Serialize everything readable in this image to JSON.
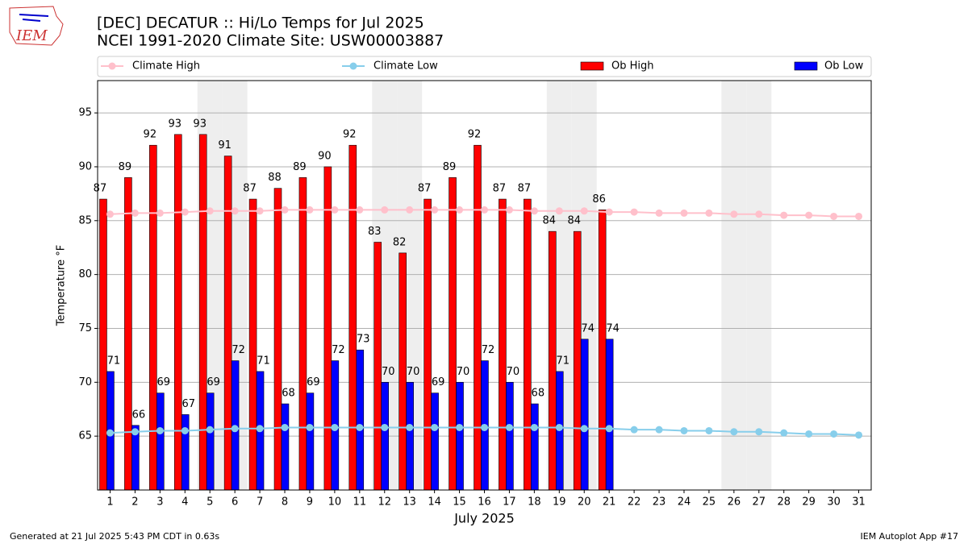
{
  "logo_text": "IEM",
  "footer_left": "Generated at 21 Jul 2025 5:43 PM CDT in 0.63s",
  "footer_right": "IEM Autoplot App #17",
  "chart_data": {
    "type": "bar_line",
    "title": "[DEC] DECATUR :: Hi/Lo Temps for Jul 2025",
    "subtitle": "NCEI 1991-2020 Climate Site: USW00003887",
    "x_label": "July 2025",
    "y_label": "Temperature °F",
    "categories": [
      "1",
      "2",
      "3",
      "4",
      "5",
      "6",
      "7",
      "8",
      "9",
      "10",
      "11",
      "12",
      "13",
      "14",
      "15",
      "16",
      "17",
      "18",
      "19",
      "20",
      "21",
      "22",
      "23",
      "24",
      "25",
      "26",
      "27",
      "28",
      "29",
      "30",
      "31"
    ],
    "shaded_categories": [
      "5",
      "6",
      "12",
      "13",
      "19",
      "20",
      "26",
      "27"
    ],
    "ylim": [
      60,
      98
    ],
    "yticks": [
      65,
      70,
      75,
      80,
      85,
      90,
      95
    ],
    "grid": true,
    "series": [
      {
        "name": "Climate High",
        "kind": "line",
        "color": "#ffc0cb",
        "values": [
          85.6,
          85.7,
          85.7,
          85.8,
          85.9,
          85.9,
          85.9,
          86,
          86,
          86,
          86,
          86,
          86,
          86,
          86,
          86,
          86,
          85.9,
          85.9,
          85.9,
          85.8,
          85.8,
          85.7,
          85.7,
          85.7,
          85.6,
          85.6,
          85.5,
          85.5,
          85.4,
          85.4
        ]
      },
      {
        "name": "Climate Low",
        "kind": "line",
        "color": "#87ceeb",
        "values": [
          65.3,
          65.4,
          65.5,
          65.5,
          65.6,
          65.7,
          65.7,
          65.8,
          65.8,
          65.8,
          65.8,
          65.8,
          65.8,
          65.8,
          65.8,
          65.8,
          65.8,
          65.8,
          65.8,
          65.7,
          65.7,
          65.6,
          65.6,
          65.5,
          65.5,
          65.4,
          65.4,
          65.3,
          65.2,
          65.2,
          65.1
        ]
      },
      {
        "name": "Ob High",
        "kind": "bar",
        "color": "#ff0000",
        "values": [
          87,
          89,
          92,
          93,
          93,
          91,
          87,
          88,
          89,
          90,
          92,
          83,
          82,
          87,
          89,
          92,
          87,
          87,
          84,
          84,
          86,
          null,
          null,
          null,
          null,
          null,
          null,
          null,
          null,
          null,
          null
        ]
      },
      {
        "name": "Ob Low",
        "kind": "bar",
        "color": "#0000ff",
        "values": [
          71,
          66,
          69,
          67,
          69,
          72,
          71,
          68,
          69,
          72,
          73,
          70,
          70,
          69,
          70,
          72,
          70,
          68,
          71,
          74,
          74,
          null,
          null,
          null,
          null,
          null,
          null,
          null,
          null,
          null,
          null
        ]
      }
    ]
  }
}
